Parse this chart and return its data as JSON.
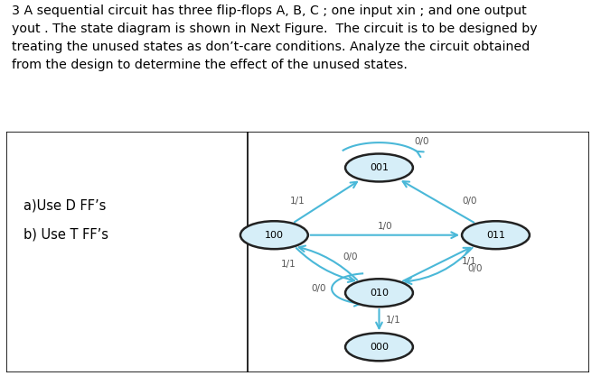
{
  "title_text": "3 A sequential circuit has three flip-flops A, B, C ; one input xin ; and one output\nyout . The state diagram is shown in Next Figure.  The circuit is to be designed by\ntreating the unused states as don’t-care conditions. Analyze the circuit obtained\nfrom the design to determine the effect of the unused states.",
  "left_text_line1": "a)Use D FF’s",
  "left_text_line2": "b) Use T FF’s",
  "node_fill": "#d6eef8",
  "node_edge_color": "#222222",
  "arrow_color": "#4ab8d8",
  "edge_label_color": "#555555",
  "bg_color": "white",
  "text_color": "black",
  "font_size_title": 10.2,
  "font_size_node": 8.0,
  "font_size_edge": 7.5,
  "font_size_left": 10.5,
  "states_x": {
    "001": 0.64,
    "100": 0.46,
    "011": 0.84,
    "010": 0.64,
    "000": 0.64
  },
  "states_y": {
    "001": 0.85,
    "100": 0.57,
    "011": 0.57,
    "010": 0.33,
    "000": 0.105
  },
  "node_r": 0.058
}
